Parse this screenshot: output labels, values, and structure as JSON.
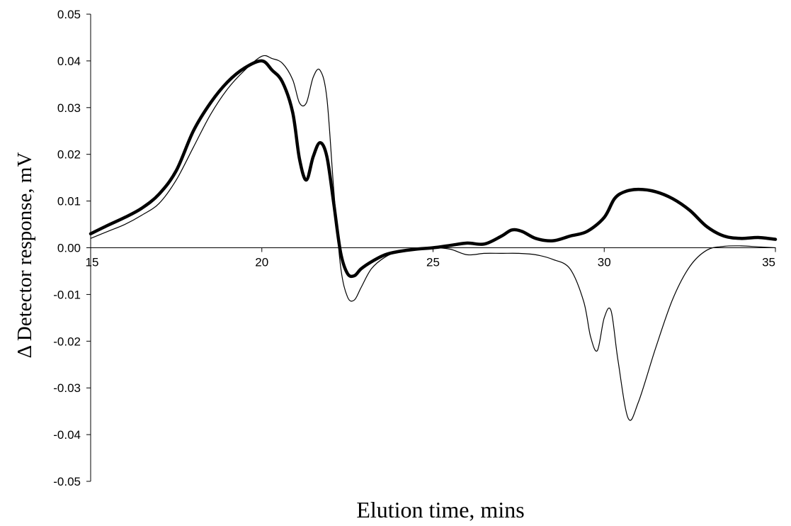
{
  "chart_data": {
    "type": "line",
    "title": "",
    "xlabel": "Elution time, mins",
    "ylabel": "Δ Detector response, mV",
    "xlim": [
      15,
      35
    ],
    "ylim": [
      -0.05,
      0.05
    ],
    "x_ticks": [
      "15",
      "20",
      "25",
      "30",
      "35"
    ],
    "y_ticks": [
      "-0.05",
      "-0.04",
      "-0.03",
      "-0.02",
      "-0.01",
      "0.00",
      "0.01",
      "0.02",
      "0.03",
      "0.04",
      "0.05"
    ],
    "grid": false,
    "legend": "none",
    "series": [
      {
        "style": "thick",
        "color": "#000000",
        "x": [
          15.0,
          15.5,
          16.0,
          16.5,
          17.0,
          17.5,
          18.0,
          18.5,
          19.0,
          19.5,
          20.0,
          20.3,
          20.6,
          20.9,
          21.1,
          21.3,
          21.5,
          21.7,
          21.9,
          22.1,
          22.3,
          22.5,
          22.7,
          22.9,
          23.2,
          23.6,
          24.0,
          24.5,
          25.0,
          25.5,
          26.0,
          26.5,
          27.0,
          27.3,
          27.6,
          28.0,
          28.5,
          29.0,
          29.5,
          30.0,
          30.3,
          30.6,
          31.0,
          31.5,
          32.0,
          32.5,
          33.0,
          33.5,
          34.0,
          34.5,
          35.0
        ],
        "y": [
          0.003,
          0.0048,
          0.0065,
          0.0085,
          0.0115,
          0.0165,
          0.025,
          0.031,
          0.0355,
          0.0385,
          0.04,
          0.038,
          0.0355,
          0.029,
          0.019,
          0.0145,
          0.0195,
          0.0225,
          0.0195,
          0.0095,
          -0.001,
          -0.0055,
          -0.006,
          -0.0045,
          -0.003,
          -0.0015,
          -0.0008,
          -0.0003,
          0.0,
          0.0005,
          0.001,
          0.0008,
          0.0025,
          0.0038,
          0.0035,
          0.002,
          0.0015,
          0.0025,
          0.0035,
          0.0065,
          0.0105,
          0.012,
          0.0125,
          0.012,
          0.0105,
          0.008,
          0.0045,
          0.0025,
          0.002,
          0.0022,
          0.0018
        ]
      },
      {
        "style": "thin",
        "color": "#000000",
        "x": [
          15.0,
          15.5,
          16.0,
          16.5,
          17.0,
          17.5,
          18.0,
          18.5,
          19.0,
          19.5,
          20.0,
          20.3,
          20.6,
          20.9,
          21.1,
          21.3,
          21.5,
          21.7,
          21.9,
          22.1,
          22.3,
          22.5,
          22.7,
          22.9,
          23.2,
          23.6,
          24.0,
          24.5,
          25.0,
          25.5,
          26.0,
          26.5,
          27.0,
          27.5,
          28.0,
          28.5,
          29.0,
          29.4,
          29.6,
          29.8,
          30.0,
          30.2,
          30.4,
          30.7,
          31.0,
          31.5,
          32.0,
          32.5,
          33.0,
          33.5,
          34.0,
          34.5,
          35.0
        ],
        "y": [
          0.002,
          0.0035,
          0.005,
          0.007,
          0.0095,
          0.0145,
          0.0215,
          0.0285,
          0.034,
          0.038,
          0.041,
          0.0405,
          0.0395,
          0.036,
          0.031,
          0.031,
          0.0365,
          0.038,
          0.032,
          0.0125,
          -0.004,
          -0.0105,
          -0.0112,
          -0.0085,
          -0.0045,
          -0.002,
          -0.0008,
          -0.0003,
          0.0,
          -0.0003,
          -0.0015,
          -0.0012,
          -0.0012,
          -0.0012,
          -0.0015,
          -0.0025,
          -0.0045,
          -0.0115,
          -0.019,
          -0.022,
          -0.015,
          -0.0135,
          -0.024,
          -0.0365,
          -0.033,
          -0.0215,
          -0.011,
          -0.004,
          -0.0005,
          0.0003,
          0.0004,
          0.0002,
          0.0
        ]
      }
    ]
  }
}
